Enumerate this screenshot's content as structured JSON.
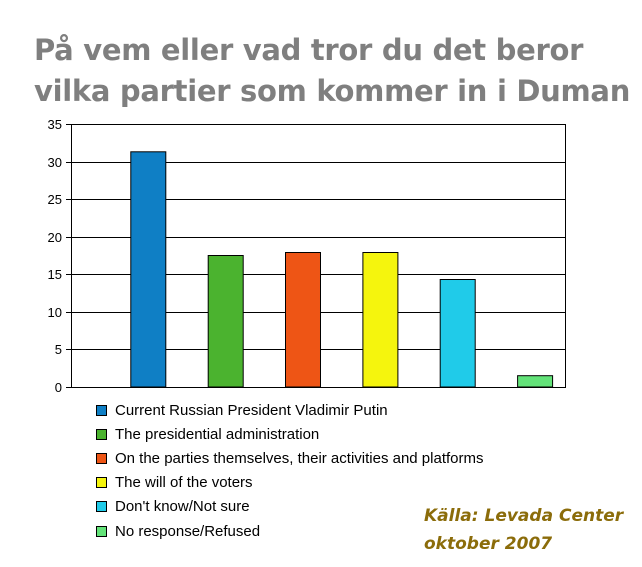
{
  "title": {
    "line1": "På vem eller vad tror du det beror",
    "line2": "vilka partier som kommer in i Duman"
  },
  "source": {
    "line1": "Källa: Levada Center",
    "line2": "oktober 2007"
  },
  "chart_data": {
    "type": "bar",
    "title": "På vem eller vad tror du det beror vilka partier som kommer in i Duman",
    "xlabel": "",
    "ylabel": "",
    "ylim": [
      0,
      35
    ],
    "yticks": [
      "0",
      "5",
      "10",
      "15",
      "20",
      "25",
      "30",
      "35"
    ],
    "grid": true,
    "legend_position": "bottom",
    "categories": [
      "Current Russian President Vladimir Putin",
      "The presidential administration",
      "On the parties themselves, their activities and platforms",
      "The will of the voters",
      "Don't know/Not sure",
      "No response/Refused"
    ],
    "values": [
      31.3,
      17.5,
      17.9,
      17.9,
      14.3,
      1.5
    ],
    "colors": [
      "#0f7fc5",
      "#4bb32f",
      "#ee5515",
      "#f5f50d",
      "#20cbe9",
      "#63e379"
    ]
  }
}
